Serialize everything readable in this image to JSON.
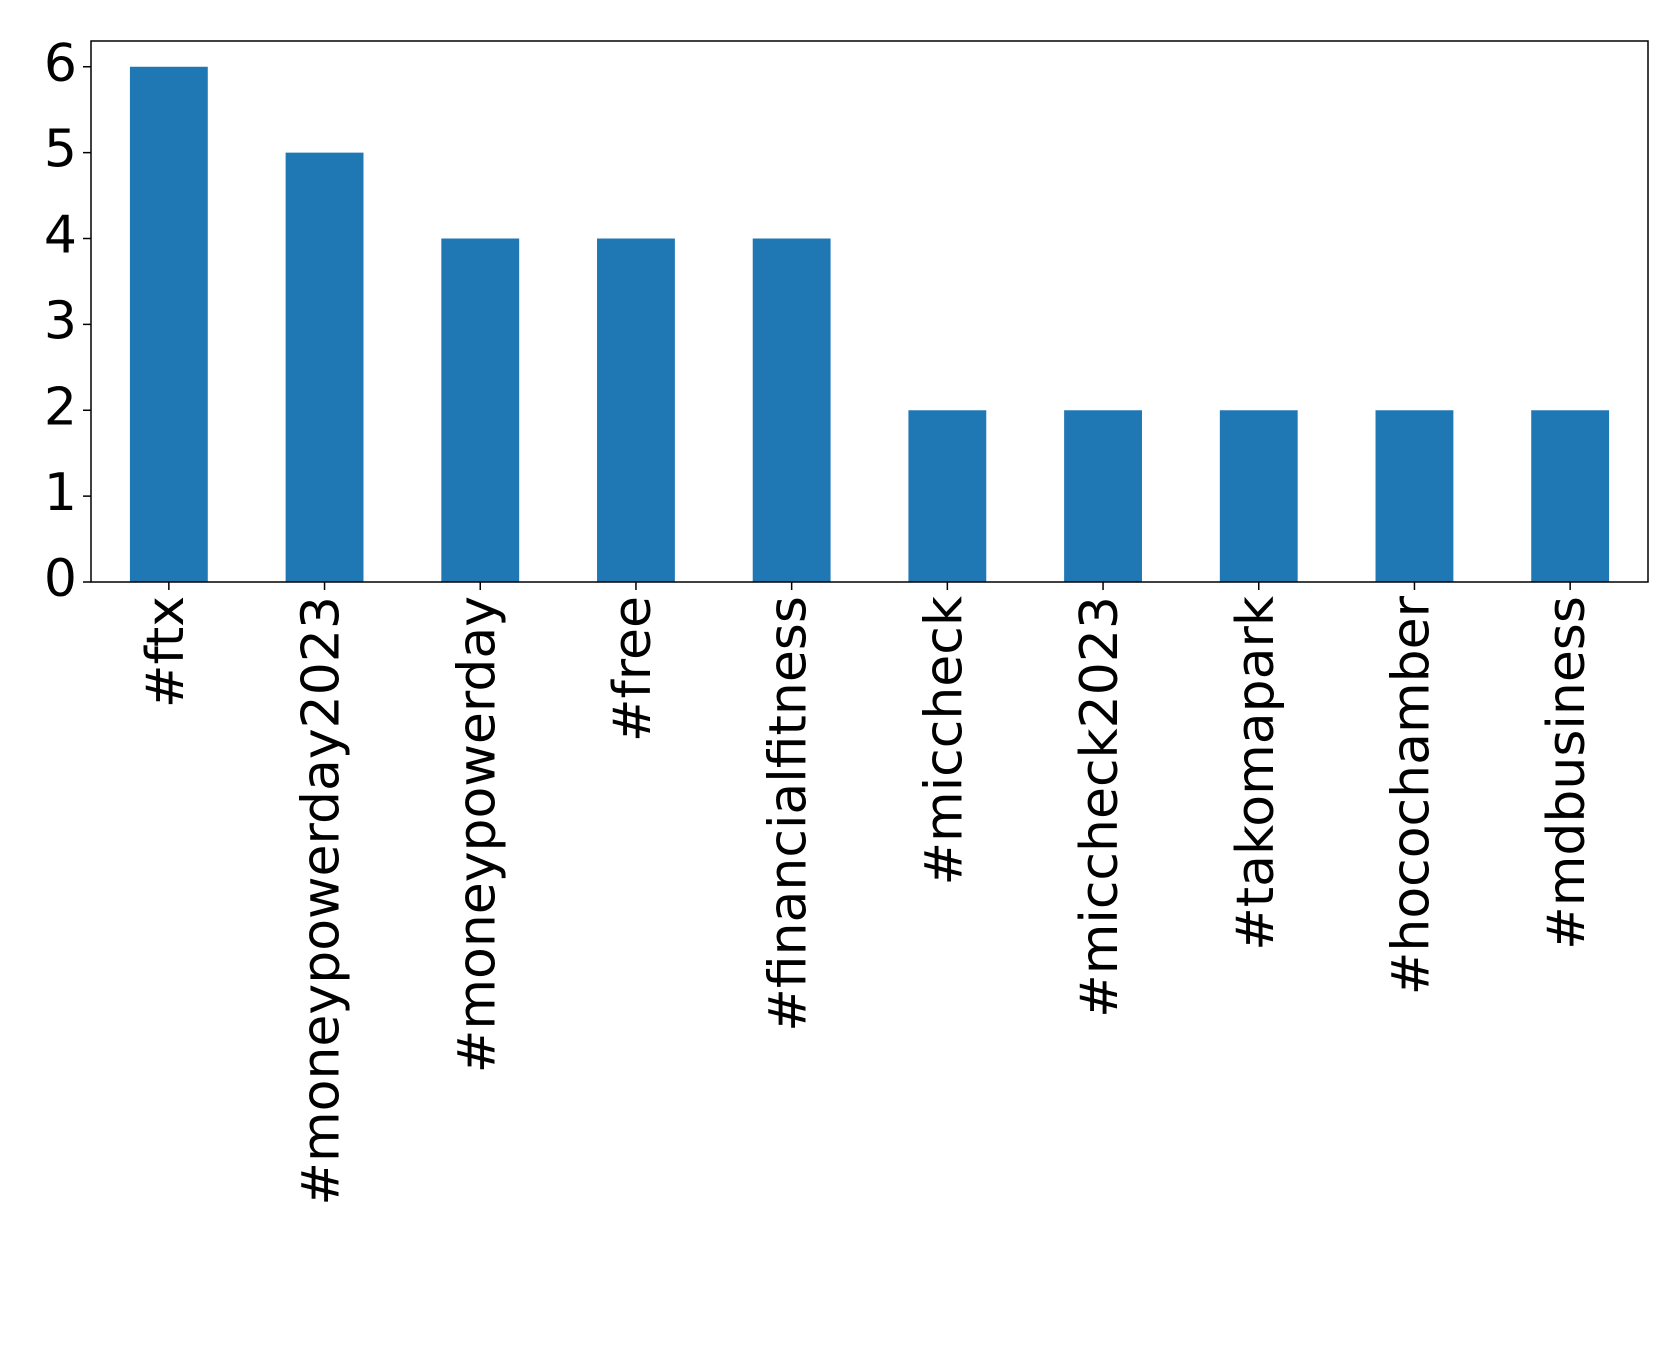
{
  "chart_data": {
    "type": "bar",
    "categories": [
      "#ftx",
      "#moneypowerday2023",
      "#moneypowerday",
      "#free",
      "#financialfitness",
      "#miccheck",
      "#miccheck2023",
      "#takomapark",
      "#hocochamber",
      "#mdbusiness"
    ],
    "values": [
      6,
      5,
      4,
      4,
      4,
      2,
      2,
      2,
      2,
      2
    ],
    "color": "#1f77b4",
    "ylim": [
      0,
      6.3
    ],
    "yticks": [
      0,
      1,
      2,
      3,
      4,
      5,
      6
    ],
    "grid": false
  }
}
